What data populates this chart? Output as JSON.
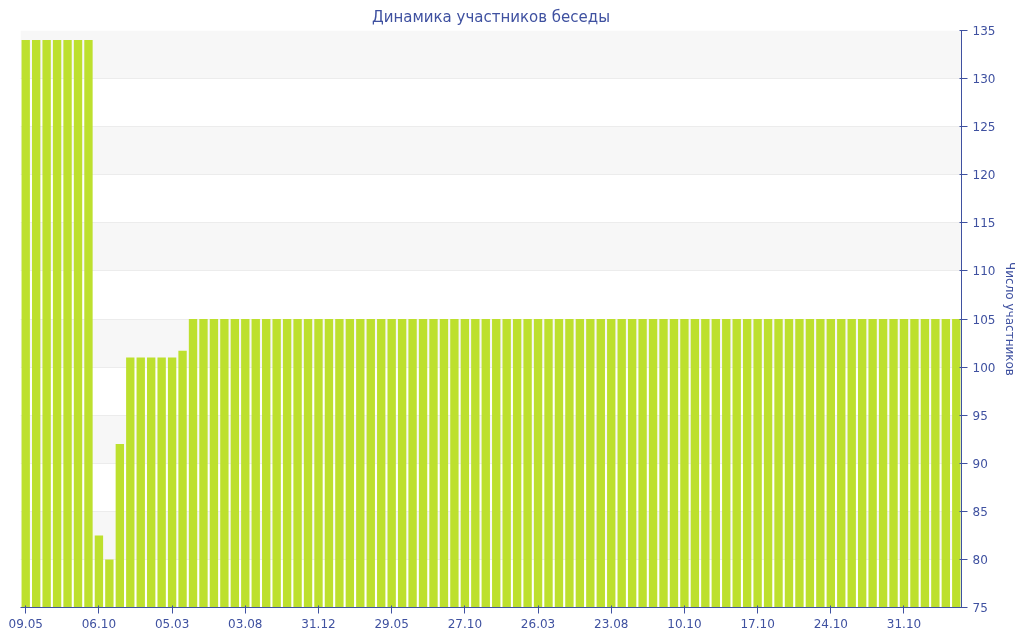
{
  "chart_data": {
    "type": "bar",
    "title": "Динамика участников беседы",
    "ylabel": "Число участников",
    "categories": [
      "09.05",
      null,
      null,
      null,
      null,
      null,
      null,
      "06.10",
      null,
      null,
      null,
      null,
      null,
      null,
      "05.03",
      null,
      null,
      null,
      null,
      null,
      null,
      "03.08",
      null,
      null,
      null,
      null,
      null,
      null,
      "31.12",
      null,
      null,
      null,
      null,
      null,
      null,
      "29.05",
      null,
      null,
      null,
      null,
      null,
      null,
      "27.10",
      null,
      null,
      null,
      null,
      null,
      null,
      "26.03",
      null,
      null,
      null,
      null,
      null,
      null,
      "23.08",
      null,
      null,
      null,
      null,
      null,
      null,
      "10.10",
      null,
      null,
      null,
      null,
      null,
      null,
      "17.10",
      null,
      null,
      null,
      null,
      null,
      null,
      "24.10",
      null,
      null,
      null,
      null,
      null,
      null,
      "31.10",
      null,
      null,
      null,
      null,
      null
    ],
    "values": [
      134,
      134,
      134,
      134,
      134,
      134,
      134,
      82.5,
      80,
      92,
      101,
      101,
      101,
      101,
      101,
      101.7,
      105,
      105,
      105,
      105,
      105,
      105,
      105,
      105,
      105,
      105,
      105,
      105,
      105,
      105,
      105,
      105,
      105,
      105,
      105,
      105,
      105,
      105,
      105,
      105,
      105,
      105,
      105,
      105,
      105,
      105,
      105,
      105,
      105,
      105,
      105,
      105,
      105,
      105,
      105,
      105,
      105,
      105,
      105,
      105,
      105,
      105,
      105,
      105,
      105,
      105,
      105,
      105,
      105,
      105,
      105,
      105,
      105,
      105,
      105,
      105,
      105,
      105,
      105,
      105,
      105,
      105,
      105,
      105,
      105,
      105,
      105,
      105,
      105,
      105
    ],
    "color": "#bde02e",
    "ylim": [
      75,
      135
    ],
    "yticks": [
      75,
      80,
      85,
      90,
      95,
      100,
      105,
      110,
      115,
      120,
      125,
      130,
      135
    ],
    "grid": "y"
  }
}
